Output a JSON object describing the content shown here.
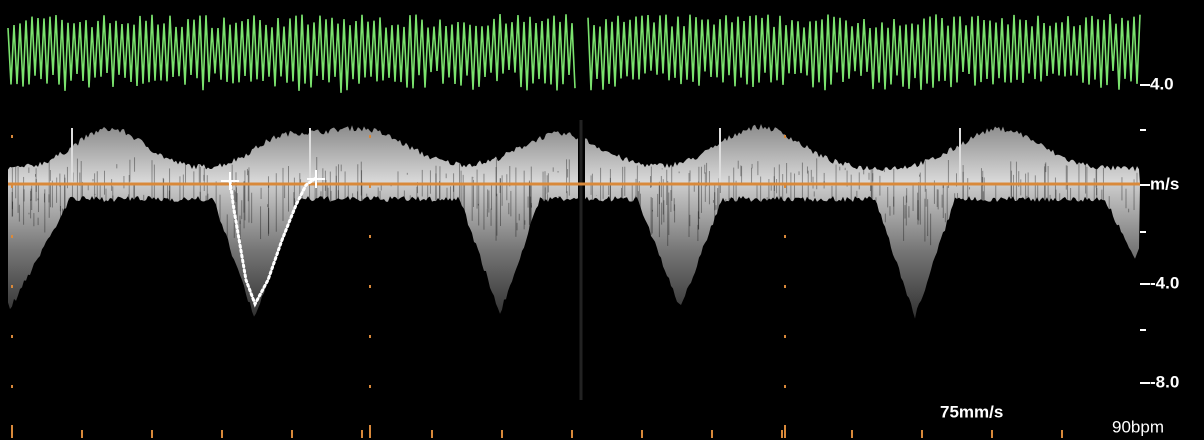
{
  "scale": {
    "labels": [
      "4.0",
      "m/s",
      "-4.0",
      "-8.0"
    ]
  },
  "footer": {
    "sweep_speed": "75mm/s",
    "heart_rate": "90bpm"
  }
}
